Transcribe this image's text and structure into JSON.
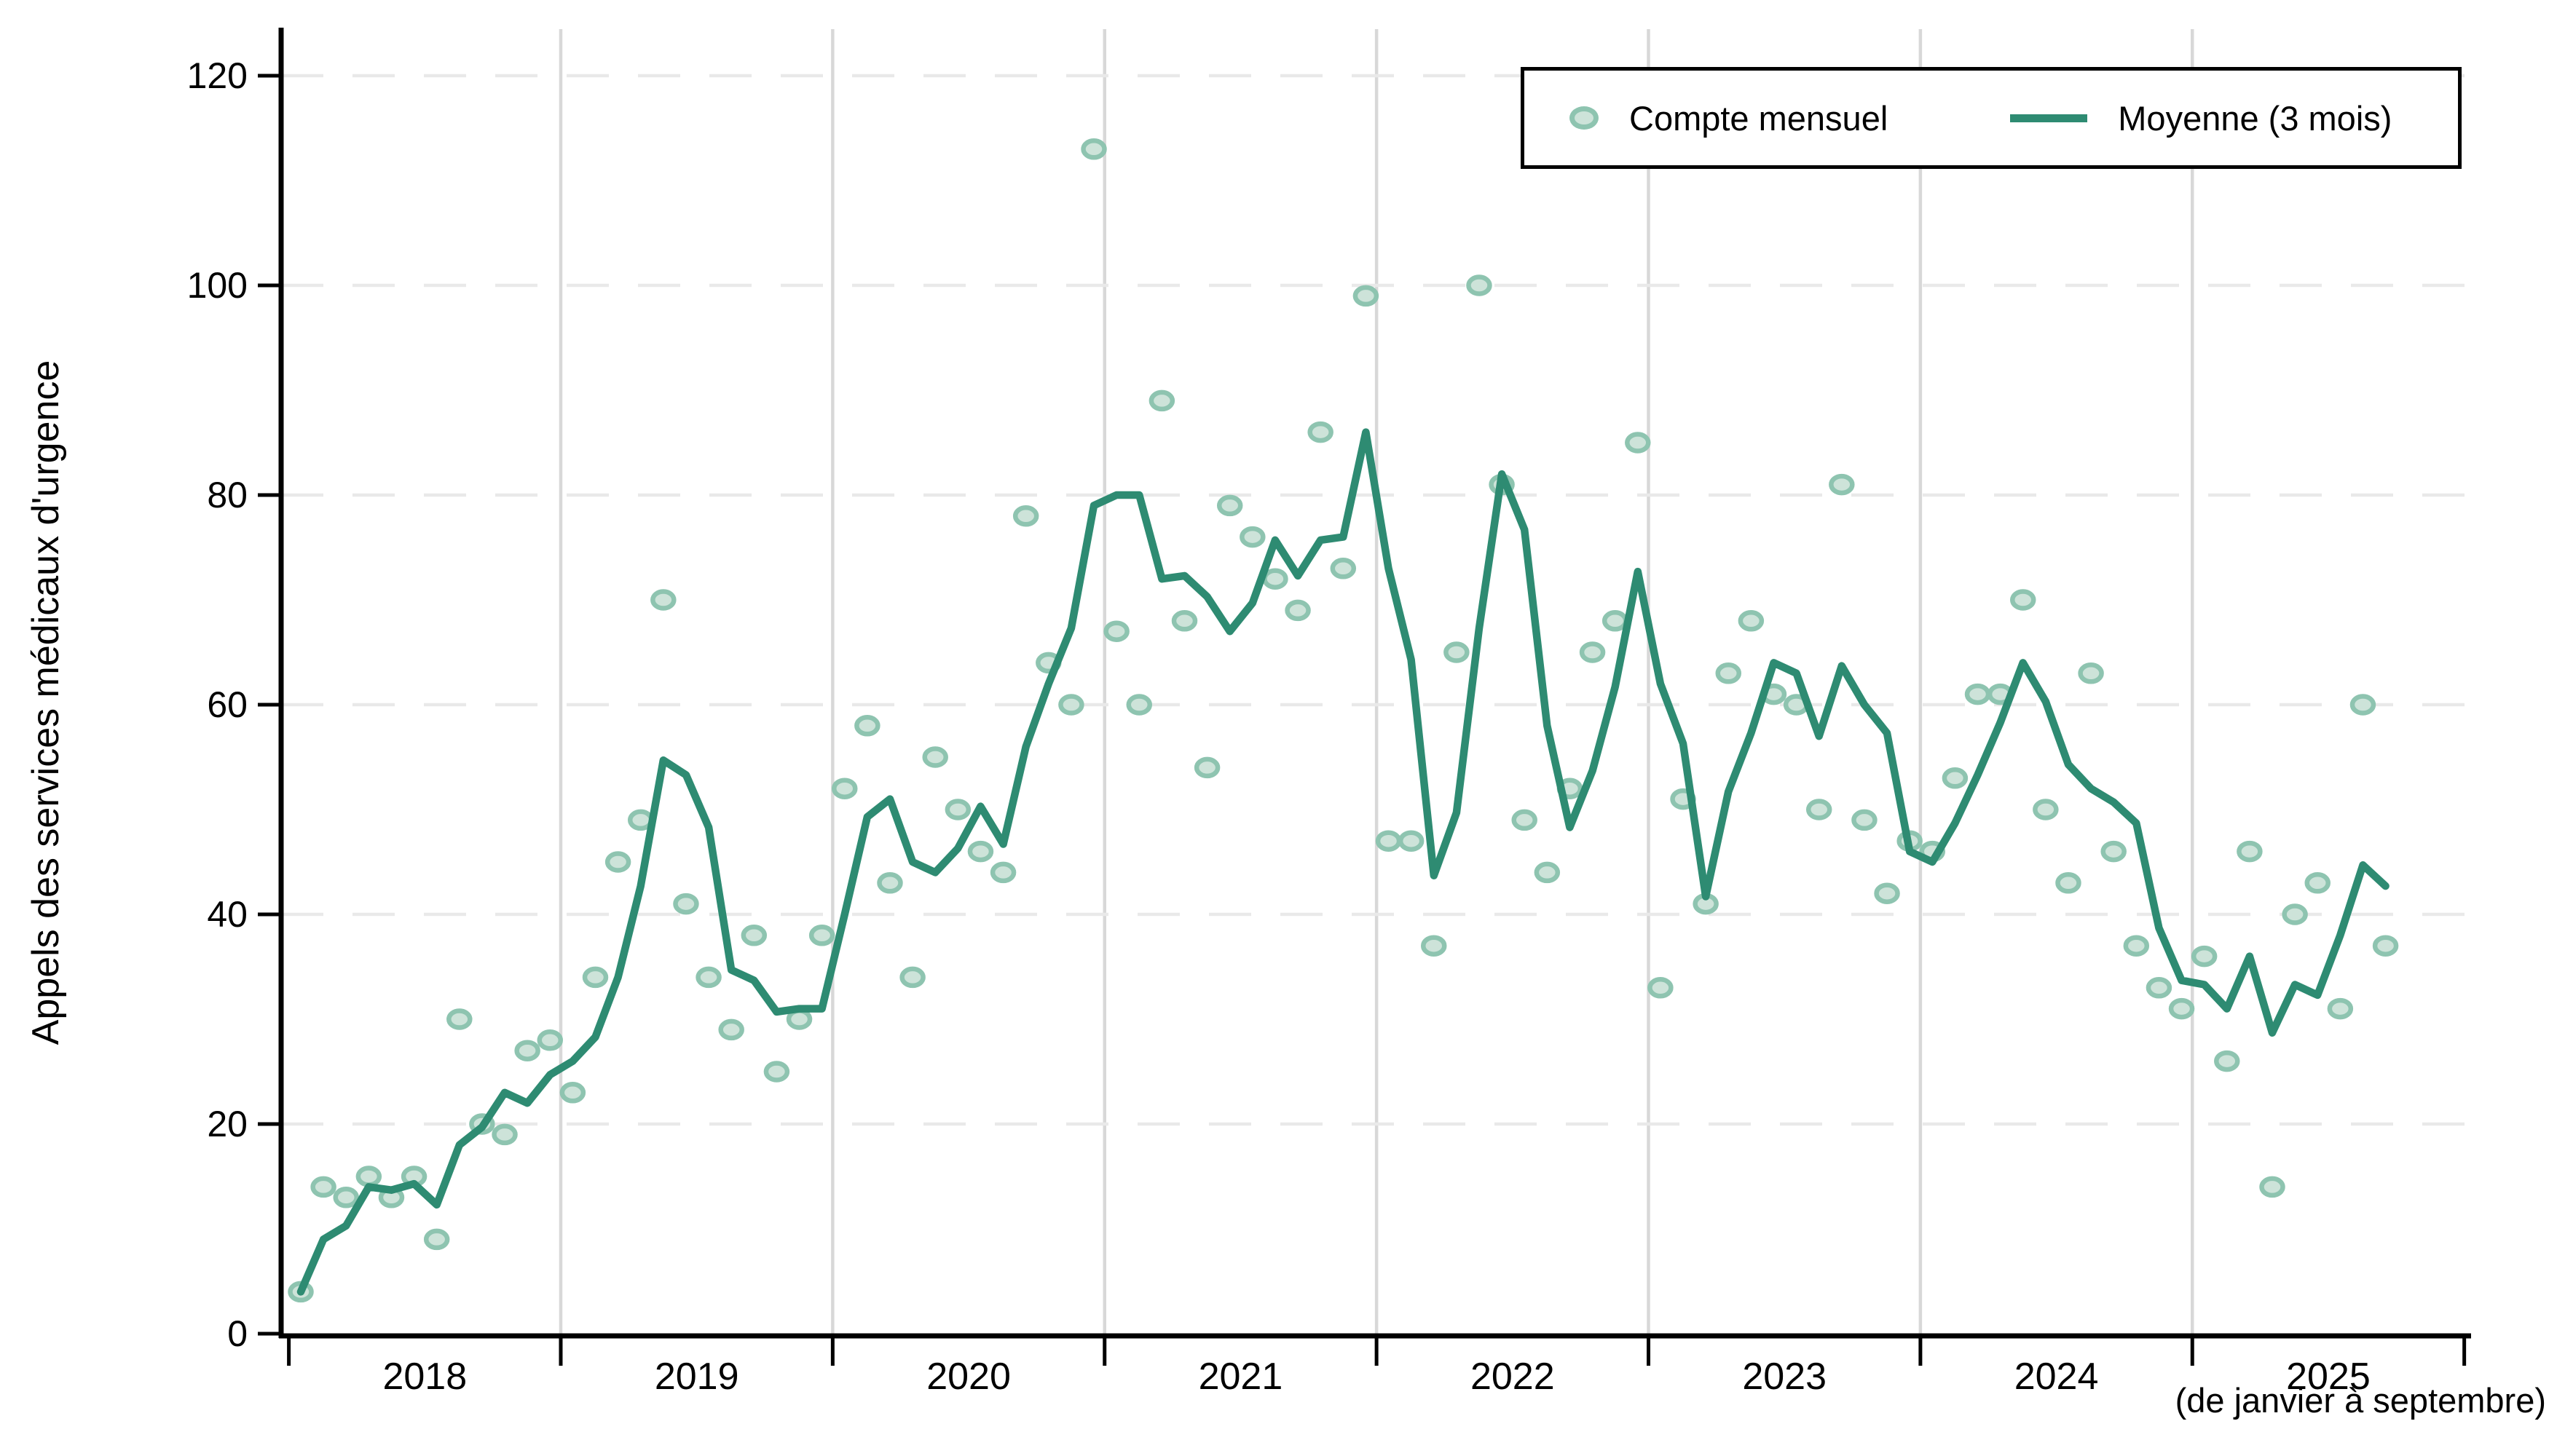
{
  "chart_data": {
    "type": "scatter",
    "title": "",
    "ylabel": "Appels des services médicaux d'urgence",
    "x_note": "(de janvier à septembre)",
    "ylim": [
      0,
      120
    ],
    "yticks": [
      0,
      20,
      40,
      60,
      80,
      100,
      120
    ],
    "year_labels": [
      "2018",
      "2019",
      "2020",
      "2021",
      "2022",
      "2023",
      "2024",
      "2025"
    ],
    "grid": "horizontal-dashed, vertical-solid-at-january",
    "legend_position": "top-right",
    "legend": [
      {
        "label": "Compte mensuel",
        "type": "marker"
      },
      {
        "label": "Moyenne (3 mois)",
        "type": "line"
      }
    ],
    "months": [
      "2018-01",
      "2018-02",
      "2018-03",
      "2018-04",
      "2018-05",
      "2018-06",
      "2018-07",
      "2018-08",
      "2018-09",
      "2018-10",
      "2018-11",
      "2018-12",
      "2019-01",
      "2019-02",
      "2019-03",
      "2019-04",
      "2019-05",
      "2019-06",
      "2019-07",
      "2019-08",
      "2019-09",
      "2019-10",
      "2019-11",
      "2019-12",
      "2020-01",
      "2020-02",
      "2020-03",
      "2020-04",
      "2020-05",
      "2020-06",
      "2020-07",
      "2020-08",
      "2020-09",
      "2020-10",
      "2020-11",
      "2020-12",
      "2021-01",
      "2021-02",
      "2021-03",
      "2021-04",
      "2021-05",
      "2021-06",
      "2021-07",
      "2021-08",
      "2021-09",
      "2021-10",
      "2021-11",
      "2021-12",
      "2022-01",
      "2022-02",
      "2022-03",
      "2022-04",
      "2022-05",
      "2022-06",
      "2022-07",
      "2022-08",
      "2022-09",
      "2022-10",
      "2022-11",
      "2022-12",
      "2023-01",
      "2023-02",
      "2023-03",
      "2023-04",
      "2023-05",
      "2023-06",
      "2023-07",
      "2023-08",
      "2023-09",
      "2023-10",
      "2023-11",
      "2023-12",
      "2024-01",
      "2024-02",
      "2024-03",
      "2024-04",
      "2024-05",
      "2024-06",
      "2024-07",
      "2024-08",
      "2024-09",
      "2024-10",
      "2024-11",
      "2024-12",
      "2025-01",
      "2025-02",
      "2025-03",
      "2025-04",
      "2025-05",
      "2025-06",
      "2025-07",
      "2025-08",
      "2025-09"
    ],
    "series": [
      {
        "name": "Compte mensuel",
        "type": "scatter",
        "values": [
          4,
          14,
          13,
          15,
          13,
          15,
          9,
          30,
          20,
          19,
          27,
          28,
          23,
          34,
          45,
          49,
          70,
          41,
          34,
          29,
          38,
          25,
          30,
          38,
          52,
          58,
          43,
          34,
          55,
          50,
          46,
          44,
          78,
          64,
          60,
          113,
          67,
          60,
          89,
          68,
          54,
          79,
          76,
          72,
          69,
          86,
          73,
          99,
          47,
          47,
          37,
          65,
          100,
          81,
          49,
          44,
          52,
          65,
          68,
          85,
          33,
          51,
          41,
          63,
          68,
          61,
          60,
          50,
          81,
          49,
          42,
          47,
          46,
          53,
          61,
          61,
          70,
          50,
          43,
          63,
          46,
          37,
          33,
          31,
          36,
          26,
          46,
          14,
          40,
          43,
          31,
          60,
          37
        ]
      },
      {
        "name": "Moyenne (3 mois)",
        "type": "line",
        "window": 3,
        "values": [
          4,
          9,
          10.3,
          14,
          13.7,
          14.3,
          12.3,
          18,
          19.7,
          23,
          22,
          24.7,
          26,
          28.3,
          34,
          42.7,
          54.7,
          53.3,
          48.3,
          34.7,
          33.7,
          30.7,
          31,
          31,
          40,
          49.3,
          51,
          45,
          44,
          46.3,
          50.3,
          46.7,
          56,
          62,
          67.3,
          79,
          80,
          80,
          72,
          72.3,
          70.3,
          67,
          69.7,
          75.7,
          72.3,
          75.7,
          76,
          86,
          73,
          64.3,
          43.7,
          49.7,
          67.3,
          82,
          76.7,
          58,
          48.3,
          53.7,
          61.7,
          72.7,
          62,
          56.3,
          41.7,
          51.7,
          57.3,
          64,
          63,
          57,
          63.7,
          60,
          57.3,
          46,
          45,
          48.7,
          53.3,
          58.3,
          64,
          60.3,
          54.3,
          52,
          50.7,
          48.7,
          38.7,
          33.7,
          33.3,
          31,
          36,
          28.7,
          33.3,
          32.3,
          38,
          44.7,
          42.7
        ]
      }
    ],
    "colors": {
      "line": "#2e8b72",
      "marker_fill": "#cde3d9",
      "marker_stroke": "#8ec4b0",
      "grid_vertical": "#d8d8d8",
      "grid_dashed": "#e9e9e9",
      "axis": "#000000",
      "background": "#ffffff"
    }
  }
}
